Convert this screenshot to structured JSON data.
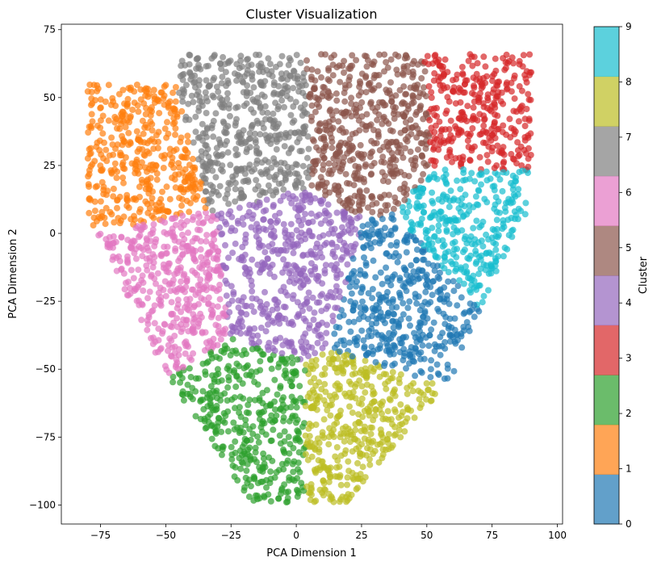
{
  "chart_data": {
    "type": "scatter",
    "title": "Cluster Visualization",
    "xlabel": "PCA Dimension 1",
    "ylabel": "PCA Dimension 2",
    "xlim": [
      -90,
      102
    ],
    "ylim": [
      -107,
      77
    ],
    "xticks": [
      -75,
      -50,
      -25,
      0,
      25,
      50,
      75,
      100
    ],
    "yticks": [
      -100,
      -75,
      -50,
      -25,
      0,
      25,
      50,
      75
    ],
    "xtick_labels": [
      "−75",
      "−50",
      "−25",
      "0",
      "25",
      "50",
      "75",
      "100"
    ],
    "ytick_labels": [
      "−100",
      "−75",
      "−50",
      "−25",
      "0",
      "25",
      "50",
      "75"
    ],
    "grid": false,
    "marker_alpha": 0.7,
    "colorbar": {
      "label": "Cluster",
      "range": [
        0,
        9
      ],
      "ticks": [
        0,
        1,
        2,
        3,
        4,
        5,
        6,
        7,
        8,
        9
      ],
      "tick_labels": [
        "0",
        "1",
        "2",
        "3",
        "4",
        "5",
        "6",
        "7",
        "8",
        "9"
      ],
      "colors": [
        "#1f77b4",
        "#ff7f0e",
        "#2ca02c",
        "#d62728",
        "#9467bd",
        "#8c564b",
        "#e377c2",
        "#7f7f7f",
        "#bcbd22",
        "#17becf"
      ]
    },
    "series": [
      {
        "cluster": 0,
        "color": "#1f77b4",
        "center": [
          40,
          -28
        ],
        "approx_extent": {
          "x": [
            18,
            70
          ],
          "y": [
            -55,
            10
          ]
        }
      },
      {
        "cluster": 1,
        "color": "#ff7f0e",
        "center": [
          -62,
          28
        ],
        "approx_extent": {
          "x": [
            -80,
            -43
          ],
          "y": [
            4,
            55
          ]
        }
      },
      {
        "cluster": 2,
        "color": "#2ca02c",
        "center": [
          -20,
          -70
        ],
        "approx_extent": {
          "x": [
            -48,
            6
          ],
          "y": [
            -98,
            -38
          ]
        }
      },
      {
        "cluster": 3,
        "color": "#d62728",
        "center": [
          73,
          45
        ],
        "approx_extent": {
          "x": [
            52,
            90
          ],
          "y": [
            22,
            66
          ]
        }
      },
      {
        "cluster": 4,
        "color": "#9467bd",
        "center": [
          -4,
          -15
        ],
        "approx_extent": {
          "x": [
            -30,
            22
          ],
          "y": [
            -45,
            16
          ]
        }
      },
      {
        "cluster": 5,
        "color": "#8c564b",
        "center": [
          28,
          42
        ],
        "approx_extent": {
          "x": [
            5,
            58
          ],
          "y": [
            10,
            66
          ]
        }
      },
      {
        "cluster": 6,
        "color": "#e377c2",
        "center": [
          -52,
          -20
        ],
        "approx_extent": {
          "x": [
            -78,
            -27
          ],
          "y": [
            -50,
            10
          ]
        }
      },
      {
        "cluster": 7,
        "color": "#7f7f7f",
        "center": [
          -19,
          40
        ],
        "approx_extent": {
          "x": [
            -45,
            6
          ],
          "y": [
            15,
            65
          ]
        }
      },
      {
        "cluster": 8,
        "color": "#bcbd22",
        "center": [
          27,
          -70
        ],
        "approx_extent": {
          "x": [
            1,
            60
          ],
          "y": [
            -98,
            -42
          ]
        }
      },
      {
        "cluster": 9,
        "color": "#17becf",
        "center": [
          73,
          2
        ],
        "approx_extent": {
          "x": [
            55,
            88
          ],
          "y": [
            -32,
            24
          ]
        }
      }
    ]
  }
}
